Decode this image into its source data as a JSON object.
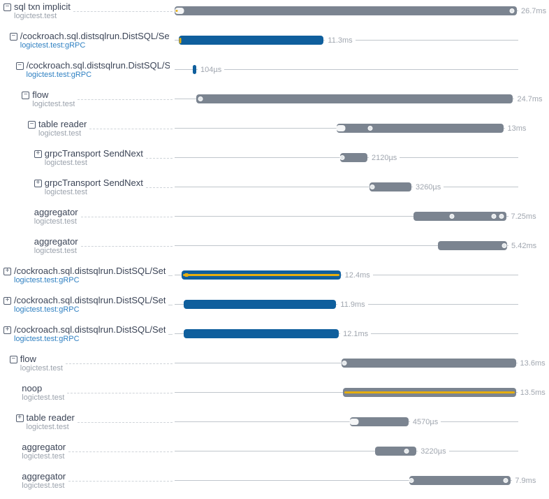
{
  "colors": {
    "title": "#3c4557",
    "sub": "#9ba2ac",
    "subblue": "#2f80c2",
    "icon": "#515b6d",
    "dash": "#cfd4d9",
    "line": "#c0c6cc",
    "grayBar": "#7b8490",
    "blueBar": "#0f5f9d",
    "yellow": "#e5ae0f",
    "durTxt": "#a0a6af"
  },
  "trace": {
    "total_ms": 26.7,
    "rows": [
      {
        "title": "sql txn implicit",
        "subtitle": "logictest.test",
        "subtitle_blue": false,
        "icon": "minus",
        "depth": 0,
        "start_ms": 0,
        "duration_ms": 26.7,
        "duration_label": "26.7ms",
        "bar": "gray",
        "stripe": false,
        "markers": [
          {
            "kind": "pill_yellow",
            "pct": 1.5
          },
          {
            "kind": "dot",
            "pct": 98.5
          }
        ]
      },
      {
        "title": "/cockroach.sql.distsqlrun.DistSQL/Set",
        "subtitle": "logictest.test:gRPC",
        "subtitle_blue": true,
        "icon": "minus",
        "depth": 1,
        "start_ms": 0.33,
        "duration_ms": 11.3,
        "duration_label": "11.3ms",
        "bar": "blue",
        "stripe": false,
        "markers": [
          {
            "kind": "ytick",
            "pct": 0.8
          }
        ]
      },
      {
        "title": "/cockroach.sql.distsqlrun.DistSQL/S",
        "subtitle": "logictest.test:gRPC",
        "subtitle_blue": true,
        "icon": "minus",
        "depth": 2,
        "start_ms": 1.42,
        "duration_ms": 0.104,
        "duration_label": "104µs",
        "bar": "blue",
        "stripe": false,
        "markers": []
      },
      {
        "title": "flow",
        "subtitle": "logictest.test",
        "subtitle_blue": false,
        "icon": "minus",
        "depth": 3,
        "start_ms": 1.7,
        "duration_ms": 24.7,
        "duration_label": "24.7ms",
        "bar": "gray",
        "stripe": false,
        "markers": [
          {
            "kind": "dot",
            "pct": 1.2
          }
        ]
      },
      {
        "title": "table reader",
        "subtitle": "logictest.test",
        "subtitle_blue": false,
        "icon": "minus",
        "depth": 4,
        "start_ms": 12.64,
        "duration_ms": 13,
        "duration_label": "13ms",
        "bar": "gray",
        "stripe": false,
        "markers": [
          {
            "kind": "pill",
            "pct": 2.5
          },
          {
            "kind": "dot",
            "pct": 20
          }
        ]
      },
      {
        "title": "grpcTransport SendNext",
        "subtitle": "logictest.test",
        "subtitle_blue": false,
        "icon": "plus",
        "depth": 5,
        "start_ms": 12.92,
        "duration_ms": 2.12,
        "duration_label": "2120µs",
        "bar": "gray",
        "stripe": false,
        "markers": [
          {
            "kind": "dot",
            "pct": 8
          }
        ]
      },
      {
        "title": "grpcTransport SendNext",
        "subtitle": "logictest.test",
        "subtitle_blue": false,
        "icon": "plus",
        "depth": 5,
        "start_ms": 15.21,
        "duration_ms": 3.26,
        "duration_label": "3260µs",
        "bar": "gray",
        "stripe": false,
        "markers": [
          {
            "kind": "dot",
            "pct": 6
          }
        ]
      },
      {
        "title": "aggregator",
        "subtitle": "logictest.test",
        "subtitle_blue": false,
        "icon": "none",
        "depth": 5,
        "start_ms": 18.66,
        "duration_ms": 7.25,
        "duration_label": "7.25ms",
        "bar": "gray",
        "stripe": false,
        "markers": [
          {
            "kind": "dot",
            "pct": 41
          },
          {
            "kind": "dot",
            "pct": 86
          },
          {
            "kind": "dot",
            "pct": 94
          }
        ]
      },
      {
        "title": "aggregator",
        "subtitle": "logictest.test",
        "subtitle_blue": false,
        "icon": "none",
        "depth": 5,
        "start_ms": 20.52,
        "duration_ms": 5.42,
        "duration_label": "5.42ms",
        "bar": "gray",
        "stripe": false,
        "markers": [
          {
            "kind": "dot",
            "pct": 96
          }
        ]
      },
      {
        "title": "/cockroach.sql.distsqlrun.DistSQL/Set",
        "subtitle": "logictest.test:gRPC",
        "subtitle_blue": true,
        "icon": "plus",
        "depth": 0,
        "start_ms": 0.55,
        "duration_ms": 12.4,
        "duration_label": "12.4ms",
        "bar": "blue",
        "stripe": true,
        "markers": [
          {
            "kind": "ysq",
            "pct": 3
          }
        ]
      },
      {
        "title": "/cockroach.sql.distsqlrun.DistSQL/Set",
        "subtitle": "logictest.test:gRPC",
        "subtitle_blue": true,
        "icon": "plus",
        "depth": 0,
        "start_ms": 0.71,
        "duration_ms": 11.9,
        "duration_label": "11.9ms",
        "bar": "blue",
        "stripe": false,
        "markers": []
      },
      {
        "title": "/cockroach.sql.distsqlrun.DistSQL/Set",
        "subtitle": "logictest.test:gRPC",
        "subtitle_blue": true,
        "icon": "plus",
        "depth": 0,
        "start_ms": 0.71,
        "duration_ms": 12.1,
        "duration_label": "12.1ms",
        "bar": "blue",
        "stripe": false,
        "markers": []
      },
      {
        "title": "flow",
        "subtitle": "logictest.test",
        "subtitle_blue": false,
        "icon": "minus",
        "depth": 1,
        "start_ms": 13.02,
        "duration_ms": 13.6,
        "duration_label": "13.6ms",
        "bar": "gray",
        "stripe": false,
        "markers": [
          {
            "kind": "dot",
            "pct": 1.5
          }
        ]
      },
      {
        "title": "noop",
        "subtitle": "logictest.test",
        "subtitle_blue": false,
        "icon": "none",
        "depth": 3,
        "start_ms": 13.13,
        "duration_ms": 13.5,
        "duration_label": "13.5ms",
        "bar": "gray",
        "stripe": true,
        "markers": []
      },
      {
        "title": "table reader",
        "subtitle": "logictest.test",
        "subtitle_blue": false,
        "icon": "plus",
        "depth": 2,
        "start_ms": 13.68,
        "duration_ms": 4.57,
        "duration_label": "4570µs",
        "bar": "gray",
        "stripe": false,
        "markers": [
          {
            "kind": "pill",
            "pct": 7
          }
        ]
      },
      {
        "title": "aggregator",
        "subtitle": "logictest.test",
        "subtitle_blue": false,
        "icon": "none",
        "depth": 3,
        "start_ms": 15.65,
        "duration_ms": 3.22,
        "duration_label": "3220µs",
        "bar": "gray",
        "stripe": false,
        "markers": [
          {
            "kind": "dot",
            "pct": 75
          }
        ]
      },
      {
        "title": "aggregator",
        "subtitle": "logictest.test",
        "subtitle_blue": false,
        "icon": "none",
        "depth": 3,
        "start_ms": 18.33,
        "duration_ms": 7.9,
        "duration_label": "7.9ms",
        "bar": "gray",
        "stripe": false,
        "markers": [
          {
            "kind": "dot",
            "pct": 2
          },
          {
            "kind": "dot",
            "pct": 95
          }
        ]
      }
    ]
  },
  "chart_data": {
    "type": "bar",
    "orientation": "horizontal-gantt-trace",
    "title": "",
    "xlabel": "time",
    "x_unit": "ms",
    "xlim": [
      0,
      26.7
    ],
    "grid": false,
    "legend": false,
    "spans": [
      {
        "name": "sql txn implicit",
        "service": "logictest.test",
        "start_ms": 0,
        "duration_ms": 26.7,
        "label": "26.7ms",
        "color": "gray"
      },
      {
        "name": "/cockroach.sql.distsqlrun.DistSQL/Set",
        "service": "logictest.test:gRPC",
        "start_ms": 0.33,
        "duration_ms": 11.3,
        "label": "11.3ms",
        "color": "blue"
      },
      {
        "name": "/cockroach.sql.distsqlrun.DistSQL/S",
        "service": "logictest.test:gRPC",
        "start_ms": 1.42,
        "duration_ms": 0.104,
        "label": "104µs",
        "color": "blue"
      },
      {
        "name": "flow",
        "service": "logictest.test",
        "start_ms": 1.7,
        "duration_ms": 24.7,
        "label": "24.7ms",
        "color": "gray"
      },
      {
        "name": "table reader",
        "service": "logictest.test",
        "start_ms": 12.64,
        "duration_ms": 13,
        "label": "13ms",
        "color": "gray"
      },
      {
        "name": "grpcTransport SendNext",
        "service": "logictest.test",
        "start_ms": 12.92,
        "duration_ms": 2.12,
        "label": "2120µs",
        "color": "gray"
      },
      {
        "name": "grpcTransport SendNext",
        "service": "logictest.test",
        "start_ms": 15.21,
        "duration_ms": 3.26,
        "label": "3260µs",
        "color": "gray"
      },
      {
        "name": "aggregator",
        "service": "logictest.test",
        "start_ms": 18.66,
        "duration_ms": 7.25,
        "label": "7.25ms",
        "color": "gray"
      },
      {
        "name": "aggregator",
        "service": "logictest.test",
        "start_ms": 20.52,
        "duration_ms": 5.42,
        "label": "5.42ms",
        "color": "gray"
      },
      {
        "name": "/cockroach.sql.distsqlrun.DistSQL/Set",
        "service": "logictest.test:gRPC",
        "start_ms": 0.55,
        "duration_ms": 12.4,
        "label": "12.4ms",
        "color": "blue",
        "highlight": "yellow-stripe"
      },
      {
        "name": "/cockroach.sql.distsqlrun.DistSQL/Set",
        "service": "logictest.test:gRPC",
        "start_ms": 0.71,
        "duration_ms": 11.9,
        "label": "11.9ms",
        "color": "blue"
      },
      {
        "name": "/cockroach.sql.distsqlrun.DistSQL/Set",
        "service": "logictest.test:gRPC",
        "start_ms": 0.71,
        "duration_ms": 12.1,
        "label": "12.1ms",
        "color": "blue"
      },
      {
        "name": "flow",
        "service": "logictest.test",
        "start_ms": 13.02,
        "duration_ms": 13.6,
        "label": "13.6ms",
        "color": "gray"
      },
      {
        "name": "noop",
        "service": "logictest.test",
        "start_ms": 13.13,
        "duration_ms": 13.5,
        "label": "13.5ms",
        "color": "gray",
        "highlight": "yellow-stripe"
      },
      {
        "name": "table reader",
        "service": "logictest.test",
        "start_ms": 13.68,
        "duration_ms": 4.57,
        "label": "4570µs",
        "color": "gray"
      },
      {
        "name": "aggregator",
        "service": "logictest.test",
        "start_ms": 15.65,
        "duration_ms": 3.22,
        "label": "3220µs",
        "color": "gray"
      },
      {
        "name": "aggregator",
        "service": "logictest.test",
        "start_ms": 18.33,
        "duration_ms": 7.9,
        "label": "7.9ms",
        "color": "gray"
      }
    ]
  }
}
